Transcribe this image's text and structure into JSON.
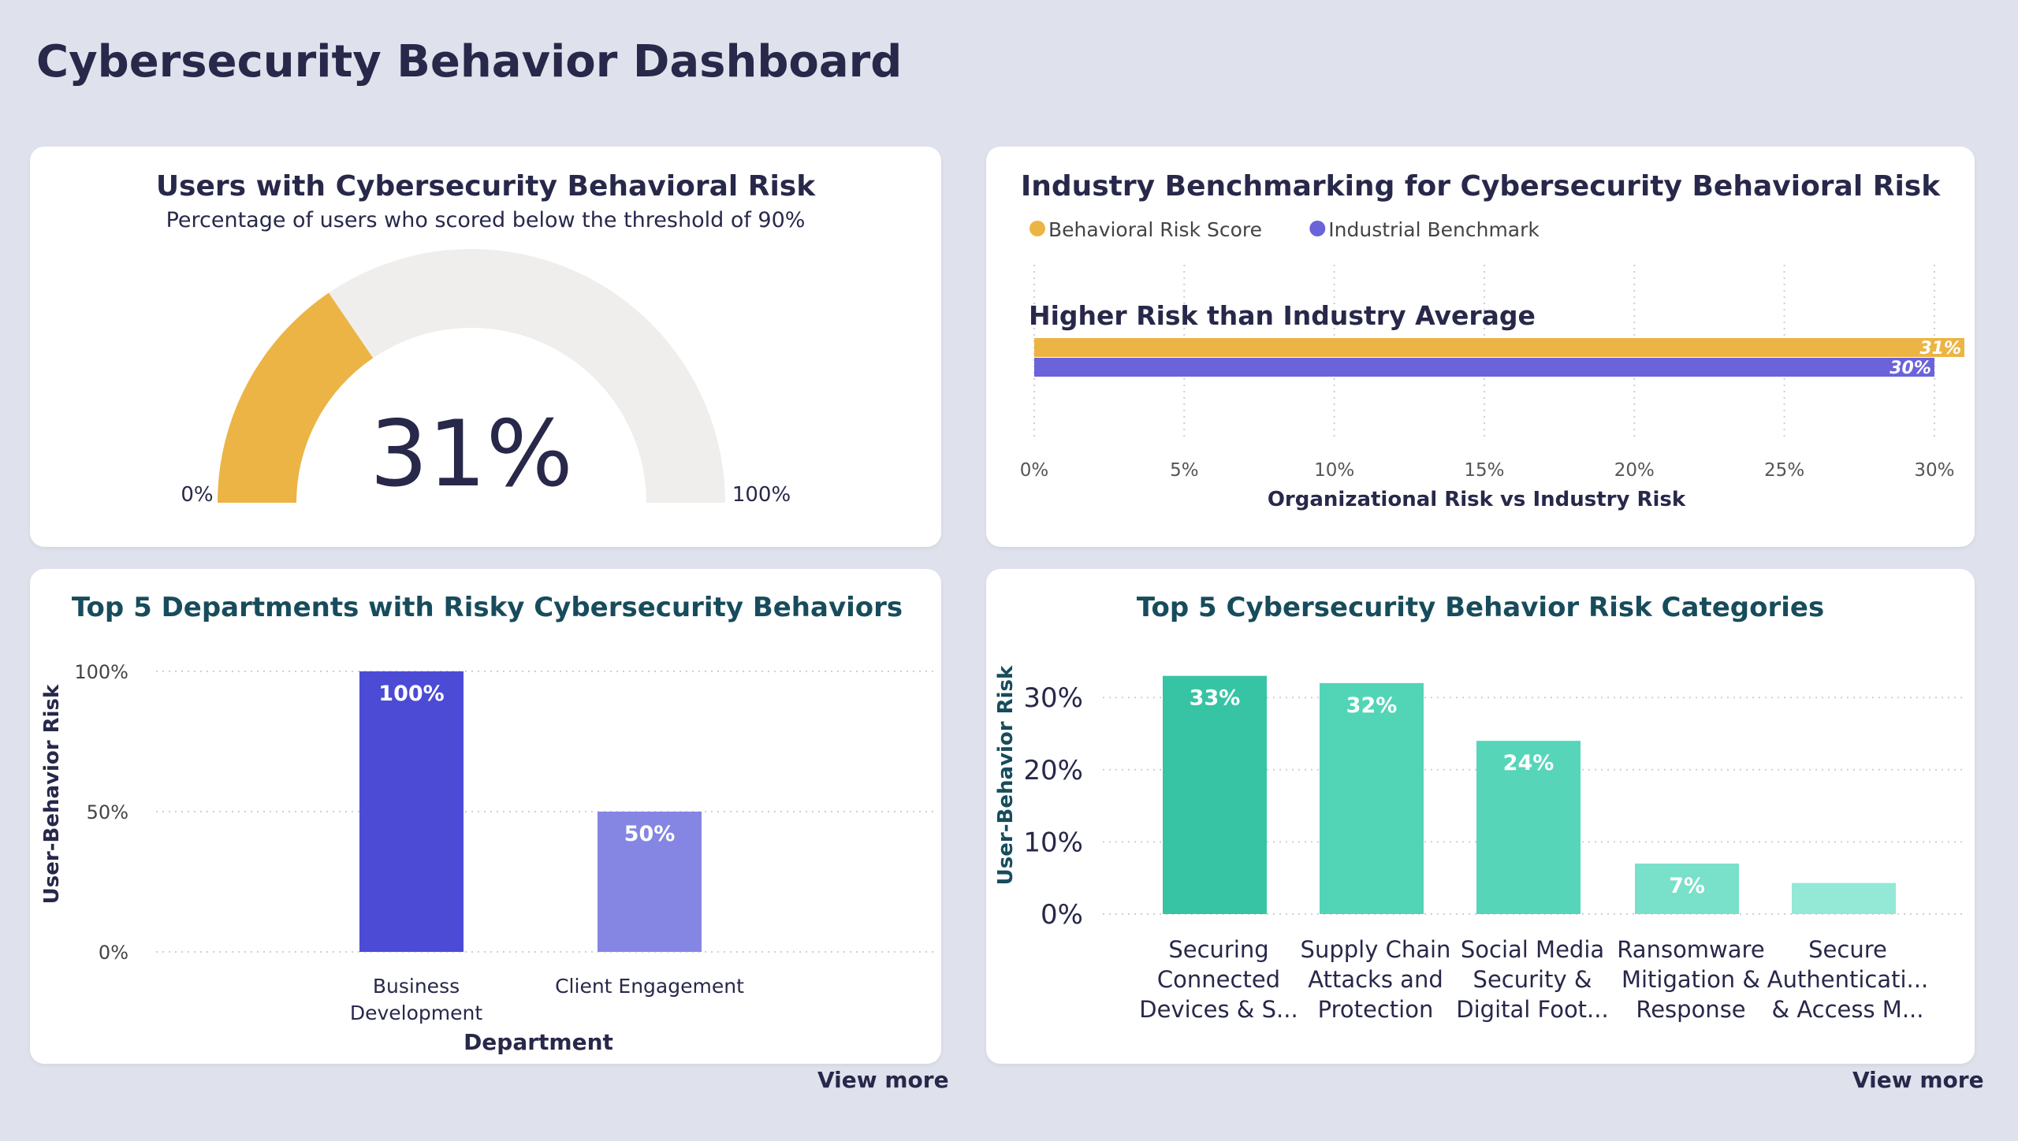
{
  "page": {
    "title": "Cybersecurity Behavior Dashboard",
    "view_more_label": "View more"
  },
  "colors": {
    "gauge_fill": "#ecb445",
    "gauge_track": "#efeeec",
    "risk_score": "#ecb445",
    "benchmark": "#6b63d9",
    "dept_bar_1": "#4b4bd6",
    "dept_bar_2": "#8585e3",
    "cat_bar_1": "#36c4a4",
    "cat_bar_2": "#52d4b6",
    "cat_bar_3": "#56d5b8",
    "cat_bar_4": "#79e0c9",
    "cat_bar_5": "#94e8d6",
    "title_teal": "#174c5c"
  },
  "chart_data": [
    {
      "type": "gauge",
      "title": "Users with Cybersecurity Behavioral Risk",
      "subtitle": "Percentage of users who scored below the threshold of 90%",
      "value": 31,
      "value_label": "31%",
      "min": 0,
      "max": 100,
      "min_label": "0%",
      "max_label": "100%"
    },
    {
      "type": "bar",
      "orientation": "horizontal",
      "title": "Industry Benchmarking for Cybersecurity Behavioral Risk",
      "annotation": "Higher Risk than Industry Average",
      "categories": [
        "Organizational Risk vs Industry Risk"
      ],
      "series": [
        {
          "name": "Behavioral Risk Score",
          "values": [
            31
          ],
          "label": "31%"
        },
        {
          "name": "Industrial Benchmark",
          "values": [
            30
          ],
          "label": "30%"
        }
      ],
      "xlabel": "Organizational Risk vs Industry Risk",
      "xlim": [
        0,
        31
      ],
      "xticks": [
        0,
        5,
        10,
        15,
        20,
        25,
        30
      ],
      "xtick_labels": [
        "0%",
        "5%",
        "10%",
        "15%",
        "20%",
        "25%",
        "30%"
      ],
      "legend": "top-left",
      "grid": true
    },
    {
      "type": "bar",
      "title": "Top 5 Departments with Risky Cybersecurity Behaviors",
      "categories": [
        [
          "Business",
          "Development"
        ],
        [
          "Client Engagement"
        ]
      ],
      "values": [
        100,
        50
      ],
      "value_labels": [
        "100%",
        "50%"
      ],
      "xlabel": "Department",
      "ylabel": "User-Behavior Risk",
      "ylim": [
        0,
        100
      ],
      "yticks": [
        0,
        50,
        100
      ],
      "ytick_labels": [
        "0%",
        "50%",
        "100%"
      ],
      "grid": true
    },
    {
      "type": "bar",
      "title": "Top 5 Cybersecurity Behavior Risk Categories",
      "categories": [
        [
          "Securing",
          "Connected",
          "Devices & S..."
        ],
        [
          "Supply Chain",
          "Attacks and",
          "Protection"
        ],
        [
          "Social Media",
          "Security &",
          "Digital Foot..."
        ],
        [
          "Ransomware",
          "Mitigation &",
          "Response"
        ],
        [
          "Secure",
          "Authenticati...",
          "& Access M..."
        ]
      ],
      "values": [
        33,
        32,
        24,
        7,
        4.3
      ],
      "value_labels": [
        "33%",
        "32%",
        "24%",
        "7%",
        ""
      ],
      "ylabel": "User-Behavior Risk",
      "ylim": [
        0,
        34
      ],
      "yticks": [
        0,
        10,
        20,
        30
      ],
      "ytick_labels": [
        "0%",
        "10%",
        "20%",
        "30%"
      ],
      "grid": true
    }
  ]
}
